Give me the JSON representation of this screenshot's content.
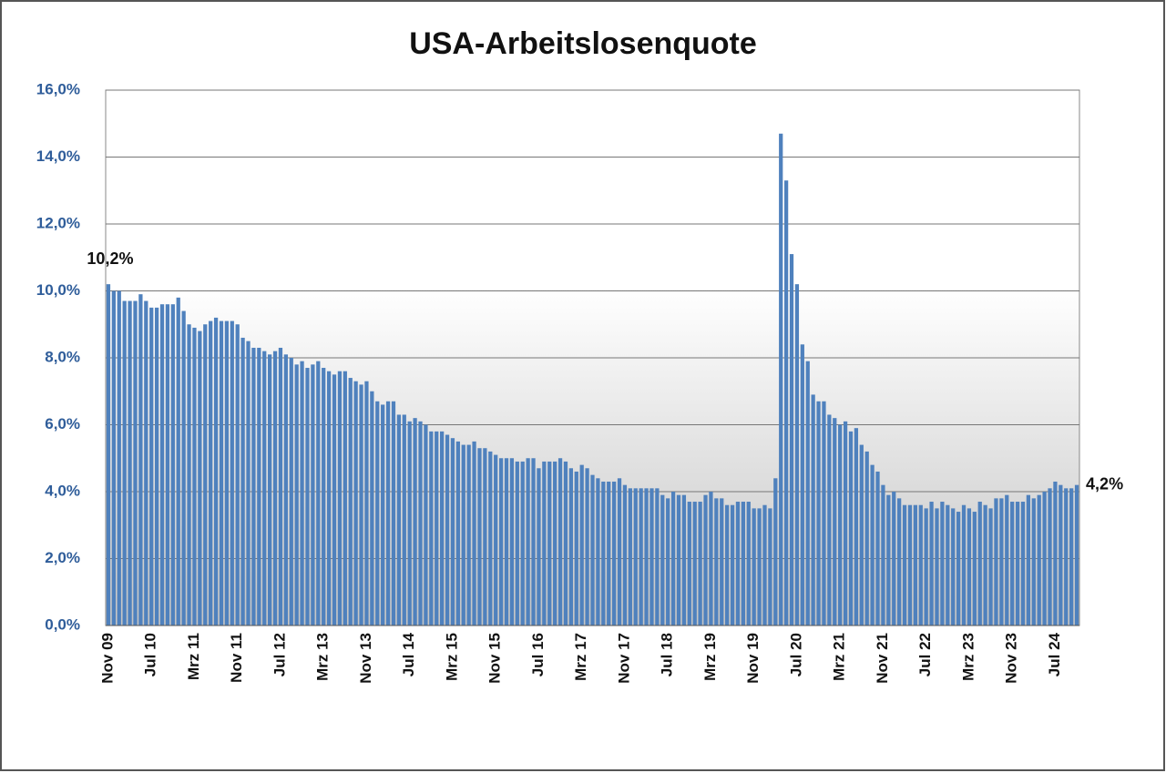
{
  "chart_data": {
    "type": "bar",
    "title": "USA-Arbeitslosenquote",
    "categories": [
      "Nov 09",
      null,
      null,
      null,
      null,
      null,
      null,
      null,
      "Jul 10",
      null,
      null,
      null,
      null,
      null,
      null,
      null,
      "Mrz 11",
      null,
      null,
      null,
      null,
      null,
      null,
      null,
      "Nov 11",
      null,
      null,
      null,
      null,
      null,
      null,
      null,
      "Jul 12",
      null,
      null,
      null,
      null,
      null,
      null,
      null,
      "Mrz 13",
      null,
      null,
      null,
      null,
      null,
      null,
      null,
      "Nov 13",
      null,
      null,
      null,
      null,
      null,
      null,
      null,
      "Jul 14",
      null,
      null,
      null,
      null,
      null,
      null,
      null,
      "Mrz 15",
      null,
      null,
      null,
      null,
      null,
      null,
      null,
      "Nov 15",
      null,
      null,
      null,
      null,
      null,
      null,
      null,
      "Jul 16",
      null,
      null,
      null,
      null,
      null,
      null,
      null,
      "Mrz 17",
      null,
      null,
      null,
      null,
      null,
      null,
      null,
      "Nov 17",
      null,
      null,
      null,
      null,
      null,
      null,
      null,
      "Jul 18",
      null,
      null,
      null,
      null,
      null,
      null,
      null,
      "Mrz 19",
      null,
      null,
      null,
      null,
      null,
      null,
      null,
      "Nov 19",
      null,
      null,
      null,
      null,
      null,
      null,
      null,
      "Jul 20",
      null,
      null,
      null,
      null,
      null,
      null,
      null,
      "Mrz 21",
      null,
      null,
      null,
      null,
      null,
      null,
      null,
      "Nov 21",
      null,
      null,
      null,
      null,
      null,
      null,
      null,
      "Jul 22",
      null,
      null,
      null,
      null,
      null,
      null,
      null,
      "Mrz 23",
      null,
      null,
      null,
      null,
      null,
      null,
      null,
      "Nov 23",
      null,
      null,
      null,
      null,
      null,
      null,
      null,
      "Jul 24",
      null,
      null,
      null,
      null
    ],
    "values": [
      10.2,
      10.0,
      10.0,
      9.7,
      9.7,
      9.7,
      9.9,
      9.7,
      9.5,
      9.5,
      9.6,
      9.6,
      9.6,
      9.8,
      9.4,
      9.0,
      8.9,
      8.8,
      9.0,
      9.1,
      9.2,
      9.1,
      9.1,
      9.1,
      9.0,
      8.6,
      8.5,
      8.3,
      8.3,
      8.2,
      8.1,
      8.2,
      8.3,
      8.1,
      8.0,
      7.8,
      7.9,
      7.7,
      7.8,
      7.9,
      7.7,
      7.6,
      7.5,
      7.6,
      7.6,
      7.4,
      7.3,
      7.2,
      7.3,
      7.0,
      6.7,
      6.6,
      6.7,
      6.7,
      6.3,
      6.3,
      6.1,
      6.2,
      6.1,
      6.0,
      5.8,
      5.8,
      5.8,
      5.7,
      5.6,
      5.5,
      5.4,
      5.4,
      5.5,
      5.3,
      5.3,
      5.2,
      5.1,
      5.0,
      5.0,
      5.0,
      4.9,
      4.9,
      5.0,
      5.0,
      4.7,
      4.9,
      4.9,
      4.9,
      5.0,
      4.9,
      4.7,
      4.6,
      4.8,
      4.7,
      4.5,
      4.4,
      4.3,
      4.3,
      4.3,
      4.4,
      4.2,
      4.1,
      4.1,
      4.1,
      4.1,
      4.1,
      4.1,
      3.9,
      3.8,
      4.0,
      3.9,
      3.9,
      3.7,
      3.7,
      3.7,
      3.9,
      4.0,
      3.8,
      3.8,
      3.6,
      3.6,
      3.7,
      3.7,
      3.7,
      3.5,
      3.5,
      3.6,
      3.5,
      4.4,
      14.7,
      13.3,
      11.1,
      10.2,
      8.4,
      7.9,
      6.9,
      6.7,
      6.7,
      6.3,
      6.2,
      6.0,
      6.1,
      5.8,
      5.9,
      5.4,
      5.2,
      4.8,
      4.6,
      4.2,
      3.9,
      4.0,
      3.8,
      3.6,
      3.6,
      3.6,
      3.6,
      3.5,
      3.7,
      3.5,
      3.7,
      3.6,
      3.5,
      3.4,
      3.6,
      3.5,
      3.4,
      3.7,
      3.6,
      3.5,
      3.8,
      3.8,
      3.9,
      3.7,
      3.7,
      3.7,
      3.9,
      3.8,
      3.9,
      4.0,
      4.1,
      4.3,
      4.2,
      4.1,
      4.1,
      4.2
    ],
    "value_labels": [
      "10,2%",
      null,
      null,
      null,
      null,
      null,
      null,
      null,
      null,
      null,
      null,
      null,
      null,
      null,
      null,
      null,
      null,
      null,
      null,
      null,
      null,
      null,
      null,
      null,
      null,
      null,
      null,
      null,
      null,
      null,
      null,
      null,
      null,
      null,
      null,
      null,
      null,
      null,
      null,
      null,
      null,
      null,
      null,
      null,
      null,
      null,
      null,
      null,
      null,
      null,
      null,
      null,
      null,
      null,
      null,
      null,
      null,
      null,
      null,
      null,
      null,
      null,
      null,
      null,
      null,
      null,
      null,
      null,
      null,
      null,
      null,
      null,
      null,
      null,
      null,
      null,
      null,
      null,
      null,
      null,
      null,
      null,
      null,
      null,
      null,
      null,
      null,
      null,
      null,
      null,
      null,
      null,
      null,
      null,
      null,
      null,
      null,
      null,
      null,
      null,
      null,
      null,
      null,
      null,
      null,
      null,
      null,
      null,
      null,
      null,
      null,
      null,
      null,
      null,
      null,
      null,
      null,
      null,
      null,
      null,
      null,
      null,
      null,
      null,
      null,
      null,
      null,
      null,
      null,
      null,
      null,
      null,
      null,
      null,
      null,
      null,
      null,
      null,
      null,
      null,
      null,
      null,
      null,
      null,
      null,
      null,
      null,
      null,
      null,
      null,
      null,
      null,
      null,
      null,
      null,
      null,
      null,
      null,
      null,
      null,
      null,
      null,
      null,
      null,
      null,
      null,
      null,
      null,
      null,
      null,
      null,
      null,
      null,
      null,
      null,
      null,
      null,
      null,
      null,
      null,
      "4,2%"
    ],
    "color": "#4f81bd",
    "ylim": [
      0,
      16
    ],
    "yticks": [
      {
        "value": 0,
        "label": "0,0%"
      },
      {
        "value": 2,
        "label": "2,0%"
      },
      {
        "value": 4,
        "label": "4,0%"
      },
      {
        "value": 6,
        "label": "6,0%"
      },
      {
        "value": 8,
        "label": "8,0%"
      },
      {
        "value": 10,
        "label": "10,0%"
      },
      {
        "value": 12,
        "label": "12,0%"
      },
      {
        "value": 14,
        "label": "14,0%"
      },
      {
        "value": 16,
        "label": "16,0%"
      }
    ],
    "grid": true
  }
}
